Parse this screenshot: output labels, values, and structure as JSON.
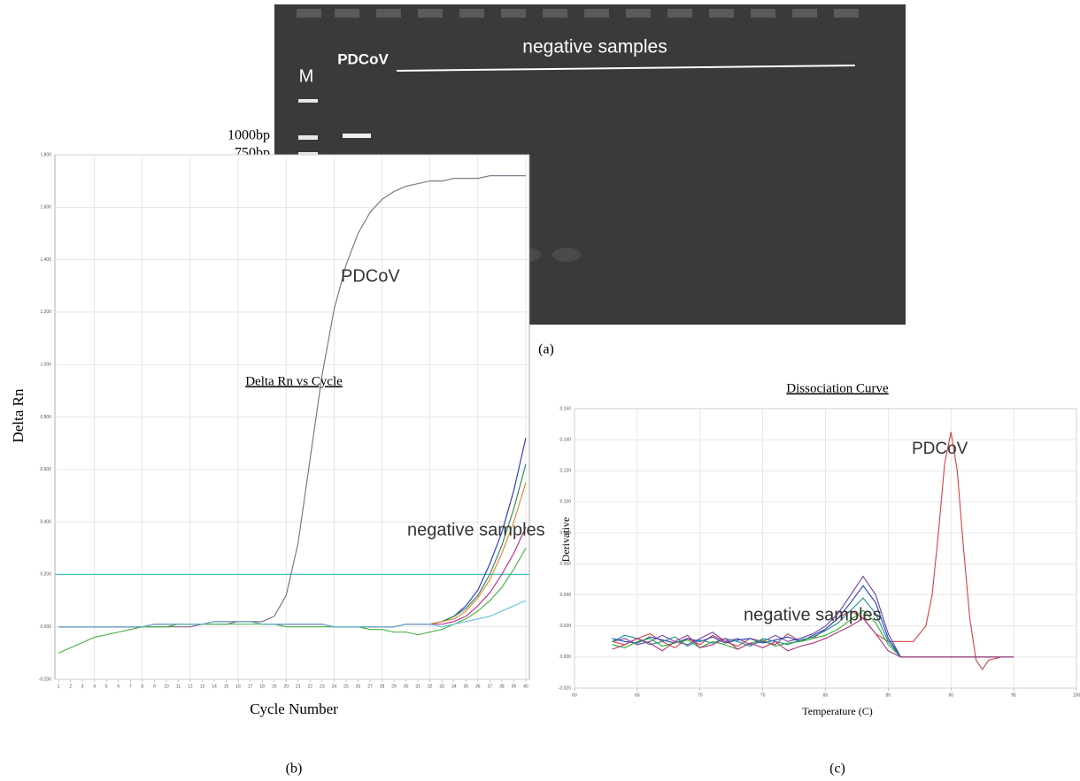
{
  "gel": {
    "lane_labels": [
      "M",
      "PDCoV"
    ],
    "group_label": "negative samples",
    "size_labels": [
      "1000bp",
      "750bp"
    ],
    "caption": "(a)"
  },
  "chart_data": [
    {
      "type": "line",
      "title": "Delta Rn vs Cycle",
      "xlabel": "Cycle Number",
      "ylabel": "Delta Rn",
      "caption": "(b)",
      "annotations": [
        "PDCoV",
        "negative samples"
      ],
      "x": [
        1,
        2,
        3,
        4,
        5,
        6,
        7,
        8,
        9,
        10,
        11,
        12,
        13,
        14,
        15,
        16,
        17,
        18,
        19,
        20,
        21,
        22,
        23,
        24,
        25,
        26,
        27,
        28,
        29,
        30,
        31,
        32,
        33,
        34,
        35,
        36,
        37,
        38,
        39,
        40
      ],
      "xlim": [
        0.7,
        40.3
      ],
      "ylim": [
        -0.2,
        1.8
      ],
      "xticks": [
        1,
        2,
        3,
        4,
        5,
        6,
        7,
        8,
        9,
        10,
        11,
        12,
        13,
        14,
        15,
        16,
        17,
        18,
        19,
        20,
        21,
        22,
        23,
        24,
        25,
        26,
        27,
        28,
        29,
        30,
        31,
        32,
        33,
        34,
        35,
        36,
        37,
        38,
        39,
        40
      ],
      "yticks": [
        {
          "value": -0.2,
          "label": "-0.200"
        },
        {
          "value": 0,
          "label": "0.000"
        },
        {
          "value": 0.2,
          "label": "0.200"
        },
        {
          "value": 0.4,
          "label": "0.400"
        },
        {
          "value": 0.6,
          "label": "0.600"
        },
        {
          "value": 0.8,
          "label": "0.800"
        },
        {
          "value": 1,
          "label": "1.000"
        },
        {
          "value": 1.2,
          "label": "1.200"
        },
        {
          "value": 1.4,
          "label": "1.400"
        },
        {
          "value": 1.6,
          "label": "1.600"
        },
        {
          "value": 1.8,
          "label": "1.800"
        }
      ],
      "grid": true,
      "threshold": 0.2,
      "threshold_color": "#4fc3c8",
      "series": [
        {
          "color": "#7a6a80",
          "values": [
            0,
            0,
            0,
            0,
            0,
            0,
            0,
            0,
            0,
            0,
            0,
            0,
            0.01,
            0.01,
            0.01,
            0.02,
            0.02,
            0.02,
            0.04,
            0.12,
            0.32,
            0.64,
            0.96,
            1.21,
            1.38,
            1.5,
            1.58,
            1.63,
            1.66,
            1.68,
            1.69,
            1.7,
            1.7,
            1.71,
            1.71,
            1.71,
            1.72,
            1.72,
            1.72,
            1.72
          ]
        },
        {
          "color": "#2030c0",
          "values": [
            0,
            0,
            0,
            0,
            0,
            0,
            0,
            0,
            0.01,
            0.01,
            0.01,
            0.01,
            0.01,
            0.02,
            0.02,
            0.02,
            0.02,
            0.01,
            0.01,
            0.01,
            0.01,
            0.01,
            0.01,
            0,
            0,
            0,
            0,
            0,
            0,
            0.01,
            0.01,
            0.01,
            0.02,
            0.04,
            0.08,
            0.14,
            0.24,
            0.36,
            0.52,
            0.72
          ]
        },
        {
          "color": "#208060",
          "values": [
            0,
            0,
            0,
            0,
            0,
            0,
            0,
            0,
            0.01,
            0.01,
            0.01,
            0.01,
            0.01,
            0.02,
            0.02,
            0.02,
            0.02,
            0.01,
            0.01,
            0.01,
            0.01,
            0.01,
            0.01,
            0,
            0,
            0,
            0,
            0,
            0,
            0.01,
            0.01,
            0.01,
            0.02,
            0.04,
            0.07,
            0.12,
            0.2,
            0.31,
            0.45,
            0.62
          ]
        },
        {
          "color": "#e08020",
          "values": [
            0,
            0,
            0,
            0,
            0,
            0,
            0,
            0,
            0.01,
            0.01,
            0.01,
            0.01,
            0.01,
            0.02,
            0.02,
            0.02,
            0.02,
            0.01,
            0.01,
            0.01,
            0.01,
            0.01,
            0.01,
            0,
            0,
            0,
            0,
            0,
            0,
            0.01,
            0.01,
            0.01,
            0.02,
            0.03,
            0.06,
            0.11,
            0.18,
            0.28,
            0.4,
            0.55
          ]
        },
        {
          "color": "#c02080",
          "values": [
            0,
            0,
            0,
            0,
            0,
            0,
            0,
            0,
            0.01,
            0.01,
            0.01,
            0.01,
            0.01,
            0.02,
            0.02,
            0.02,
            0.02,
            0.01,
            0.01,
            0.01,
            0.01,
            0.01,
            0.01,
            0,
            0,
            0,
            0,
            0,
            0,
            0.01,
            0.01,
            0.01,
            0.01,
            0.02,
            0.04,
            0.08,
            0.13,
            0.2,
            0.28,
            0.38
          ]
        },
        {
          "color": "#40b040",
          "values": [
            -0.1,
            -0.08,
            -0.06,
            -0.04,
            -0.03,
            -0.02,
            -0.01,
            0,
            0,
            0,
            0.01,
            0.01,
            0.01,
            0.01,
            0.01,
            0.01,
            0.01,
            0.01,
            0.01,
            0,
            0,
            0,
            0,
            0,
            0,
            0,
            -0.01,
            -0.01,
            -0.02,
            -0.02,
            -0.03,
            -0.02,
            -0.01,
            0.01,
            0.03,
            0.06,
            0.1,
            0.15,
            0.22,
            0.3
          ]
        },
        {
          "color": "#60c0e0",
          "values": [
            0,
            0,
            0,
            0,
            0,
            0,
            0,
            0,
            0.01,
            0.01,
            0.01,
            0.01,
            0.01,
            0.02,
            0.02,
            0.02,
            0.02,
            0.01,
            0.01,
            0.01,
            0.01,
            0.01,
            0.01,
            0,
            0,
            0,
            0,
            0,
            0,
            0.01,
            0.01,
            0.01,
            0,
            0.01,
            0.02,
            0.03,
            0.04,
            0.06,
            0.08,
            0.1
          ]
        }
      ]
    },
    {
      "type": "line",
      "title": "Dissociation Curve",
      "xlabel": "Temperature (C)",
      "ylabel": "Derivative",
      "caption": "(c)",
      "annotations": [
        "PDCoV",
        "negative samples"
      ],
      "x": [
        63,
        64,
        65,
        66,
        67,
        68,
        69,
        70,
        71,
        72,
        73,
        74,
        75,
        76,
        77,
        78,
        79,
        80,
        81,
        82,
        83,
        84,
        85,
        86,
        95
      ],
      "xlim": [
        60,
        100
      ],
      "ylim": [
        -0.02,
        0.16
      ],
      "xticks": [
        60,
        65,
        70,
        75,
        80,
        85,
        90,
        95,
        100
      ],
      "yticks": [
        {
          "value": -0.02,
          "label": "-0.020"
        },
        {
          "value": 0,
          "label": "0.000"
        },
        {
          "value": 0.02,
          "label": "0.020"
        },
        {
          "value": 0.04,
          "label": "0.040"
        },
        {
          "value": 0.06,
          "label": "0.060"
        },
        {
          "value": 0.08,
          "label": "0.080"
        },
        {
          "value": 0.1,
          "label": "0.100"
        },
        {
          "value": 0.12,
          "label": "0.120"
        },
        {
          "value": 0.14,
          "label": "0.140"
        },
        {
          "value": 0.16,
          "label": "0.160"
        }
      ],
      "grid": true,
      "series": [
        {
          "color": "#d84040",
          "x": [
            63,
            64,
            65,
            66,
            67,
            68,
            69,
            70,
            71,
            72,
            73,
            74,
            75,
            76,
            77,
            78,
            79,
            80,
            81,
            82,
            83,
            84,
            85,
            86,
            87,
            88,
            88.5,
            89,
            89.5,
            90,
            90.5,
            91,
            91.5,
            92,
            92.5,
            93,
            94
          ],
          "values": [
            0.01,
            0.008,
            0.012,
            0.015,
            0.01,
            0.006,
            0.012,
            0.008,
            0.014,
            0.01,
            0.007,
            0.012,
            0.01,
            0.008,
            0.015,
            0.01,
            0.012,
            0.018,
            0.025,
            0.03,
            0.025,
            0.015,
            0.01,
            0.01,
            0.01,
            0.02,
            0.04,
            0.08,
            0.125,
            0.145,
            0.12,
            0.07,
            0.025,
            -0.002,
            -0.008,
            -0.002,
            0
          ]
        },
        {
          "color": "#7040a0",
          "values": [
            0.01,
            0.012,
            0.008,
            0.01,
            0.014,
            0.01,
            0.008,
            0.012,
            0.016,
            0.01,
            0.012,
            0.008,
            0.01,
            0.014,
            0.01,
            0.012,
            0.015,
            0.02,
            0.028,
            0.04,
            0.052,
            0.04,
            0.015,
            0,
            0
          ]
        },
        {
          "color": "#2040c0",
          "values": [
            0.012,
            0.01,
            0.009,
            0.013,
            0.011,
            0.009,
            0.012,
            0.01,
            0.013,
            0.009,
            0.011,
            0.012,
            0.009,
            0.011,
            0.013,
            0.01,
            0.014,
            0.018,
            0.025,
            0.035,
            0.046,
            0.035,
            0.012,
            0,
            0
          ]
        },
        {
          "color": "#30b030",
          "values": [
            0.008,
            0.006,
            0.01,
            0.012,
            0.007,
            0.009,
            0.011,
            0.006,
            0.01,
            0.008,
            0.005,
            0.009,
            0.011,
            0.007,
            0.009,
            0.01,
            0.012,
            0.014,
            0.018,
            0.024,
            0.03,
            0.022,
            0.008,
            0,
            0
          ]
        },
        {
          "color": "#209090",
          "values": [
            0.01,
            0.014,
            0.012,
            0.008,
            0.01,
            0.013,
            0.007,
            0.011,
            0.009,
            0.012,
            0.01,
            0.007,
            0.012,
            0.01,
            0.008,
            0.011,
            0.013,
            0.017,
            0.022,
            0.03,
            0.038,
            0.028,
            0.01,
            0,
            0
          ]
        },
        {
          "color": "#b03080",
          "values": [
            0.005,
            0.008,
            0.012,
            0.009,
            0.004,
            0.01,
            0.014,
            0.006,
            0.008,
            0.012,
            0.005,
            0.009,
            0.006,
            0.01,
            0.004,
            0.007,
            0.009,
            0.012,
            0.016,
            0.02,
            0.025,
            0.015,
            0.004,
            0,
            0
          ]
        }
      ]
    }
  ]
}
